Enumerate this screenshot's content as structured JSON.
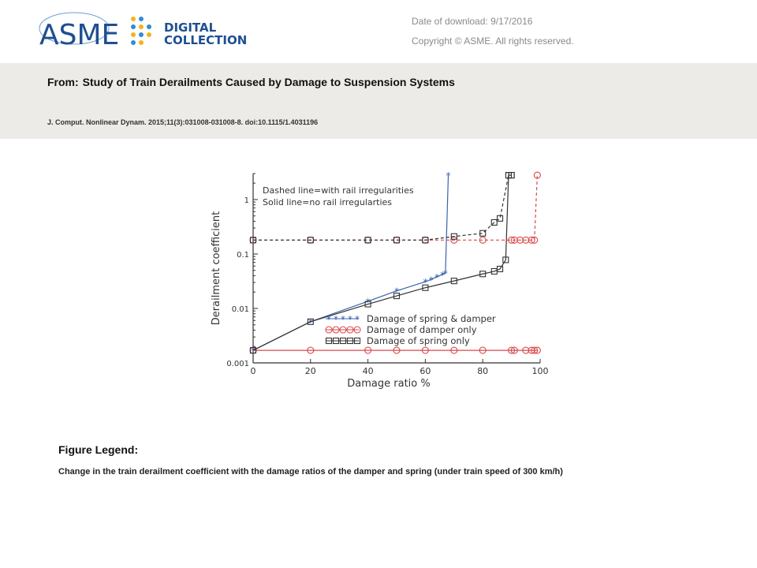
{
  "header": {
    "logo_text": "ASME",
    "logo_sub_1": "DIGITAL",
    "logo_sub_2": "COLLECTION",
    "date_of_download": "Date of download:  9/17/2016",
    "copyright": "Copyright © ASME. All rights reserved."
  },
  "article": {
    "from_label": "From:",
    "title": "Study of Train Derailments Caused by Damage to Suspension Systems",
    "citation": "J. Comput. Nonlinear Dynam. 2015;11(3):031008-031008-8. doi:10.1115/1.4031196"
  },
  "figure_legend": {
    "heading": "Figure Legend:",
    "text": "Change in the train derailment coefficient with the damage ratios of the damper and spring (under train speed of 300 km/h)"
  },
  "chart_data": {
    "type": "line",
    "title": "",
    "xlabel": "Damage ratio %",
    "ylabel": "Derailment coefficient",
    "xlim": [
      0,
      100
    ],
    "ylim": [
      0.001,
      3
    ],
    "yscale": "log",
    "x_ticks": [
      "0",
      "20",
      "40",
      "60",
      "80",
      "100"
    ],
    "y_ticks": [
      {
        "value": 0.001,
        "label": "0.001"
      },
      {
        "value": 0.01,
        "label": "0.01"
      },
      {
        "value": 0.1,
        "label": "0.1"
      },
      {
        "value": 1,
        "label": "1"
      }
    ],
    "annotations": [
      "Dashed line=with rail irregularities",
      "Solid line=no rail irregularties"
    ],
    "legend_placement": "bottom-center",
    "series": [
      {
        "name": "Damage of spring & damper",
        "color": "#3a63b0",
        "marker": "star",
        "style": "solid",
        "x": [
          0,
          20,
          40,
          50,
          60,
          62,
          64,
          66,
          67,
          68
        ],
        "y": [
          0.0017,
          0.0057,
          0.0135,
          0.021,
          0.031,
          0.034,
          0.038,
          0.042,
          0.045,
          2.8
        ]
      },
      {
        "name": "Damage of damper only",
        "color": "#d94a4a",
        "marker": "circle",
        "style": "solid",
        "x": [
          0,
          20,
          40,
          50,
          60,
          70,
          80,
          90,
          91,
          95,
          97,
          98,
          99
        ],
        "y": [
          0.0017,
          0.0017,
          0.0017,
          0.0017,
          0.0017,
          0.0017,
          0.0017,
          0.0017,
          0.0017,
          0.0017,
          0.0017,
          0.0017,
          0.0017
        ]
      },
      {
        "name": "Damage of damper only (with rail irregularities)",
        "color": "#d94a4a",
        "marker": "circle",
        "style": "dashed",
        "x": [
          0,
          20,
          40,
          50,
          60,
          70,
          80,
          90,
          91,
          93,
          95,
          97,
          98,
          99
        ],
        "y": [
          0.18,
          0.18,
          0.18,
          0.18,
          0.18,
          0.18,
          0.18,
          0.18,
          0.18,
          0.18,
          0.18,
          0.18,
          0.18,
          2.8
        ]
      },
      {
        "name": "Damage of spring only",
        "color": "#333333",
        "marker": "square",
        "style": "solid",
        "x": [
          0,
          20,
          40,
          50,
          60,
          70,
          80,
          84,
          86,
          88,
          89,
          90
        ],
        "y": [
          0.0017,
          0.0057,
          0.012,
          0.017,
          0.024,
          0.032,
          0.043,
          0.048,
          0.053,
          0.078,
          2.8,
          2.8
        ]
      },
      {
        "name": "Damage of spring only (with rail irregularities)",
        "color": "#333333",
        "marker": "square",
        "style": "dashed",
        "x": [
          0,
          20,
          40,
          50,
          60,
          70,
          80,
          84,
          86,
          89,
          90
        ],
        "y": [
          0.18,
          0.18,
          0.18,
          0.18,
          0.18,
          0.21,
          0.24,
          0.38,
          0.45,
          2.8,
          2.8
        ]
      }
    ]
  }
}
